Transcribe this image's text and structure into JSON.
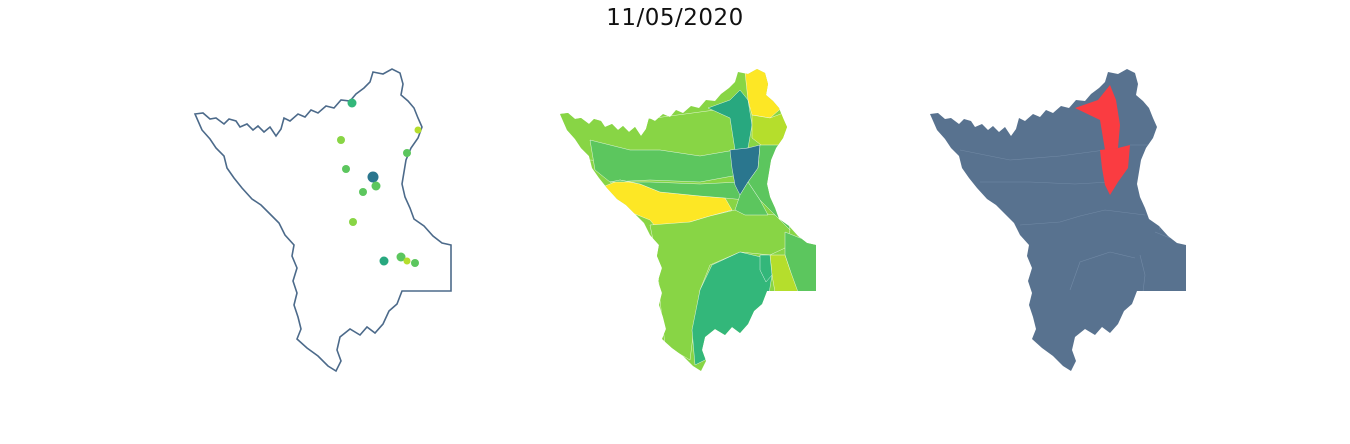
{
  "title": "11/05/2020",
  "colors": {
    "outline": "#4c6a8a",
    "panel3_base": "#58728f",
    "panel3_highlight": "#fa3c41",
    "interior_lines": "#7890ab",
    "viridis_dark": "#2a768e",
    "viridis_teal": "#28a87f",
    "viridis_green": "#33b77a",
    "viridis_mid": "#5cc65e",
    "viridis_light": "#88d545",
    "viridis_lime": "#b5de2c",
    "viridis_yellow": "#fde725"
  },
  "panels": [
    {
      "name": "point-map",
      "description_markers": "stations"
    },
    {
      "name": "region-map"
    },
    {
      "name": "highlight-map"
    }
  ]
}
